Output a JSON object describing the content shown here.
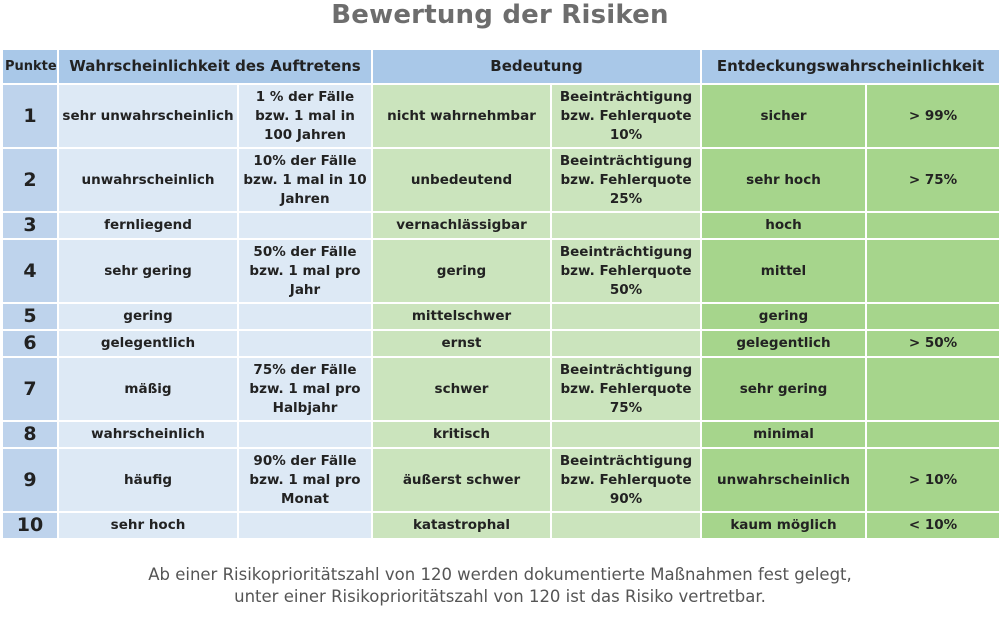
{
  "title": "Bewertung der Risiken",
  "headers": {
    "punkte": "Punkte",
    "wahrscheinlichkeit": "Wahrscheinlichkeit des Auftretens",
    "bedeutung": "Bedeutung",
    "entdeckung": "Entdeckungswahrscheinlichkeit"
  },
  "rows": [
    {
      "punkte": "1",
      "wahr": "sehr unwahrscheinlich",
      "wahr_detail": "1 % der Fälle bzw. 1 mal in 100 Jahren",
      "bed": "nicht wahrnehmbar",
      "bed_detail": "Beeinträchtigung bzw. Fehlerquote 10%",
      "ent": "sicher",
      "ent_detail": "> 99%"
    },
    {
      "punkte": "2",
      "wahr": "unwahrscheinlich",
      "wahr_detail": "10% der Fälle bzw. 1 mal in 10 Jahren",
      "bed": "unbedeutend",
      "bed_detail": "Beeinträchtigung bzw. Fehlerquote 25%",
      "ent": "sehr hoch",
      "ent_detail": "> 75%"
    },
    {
      "punkte": "3",
      "wahr": "fernliegend",
      "wahr_detail": "",
      "bed": "vernachlässigbar",
      "bed_detail": "",
      "ent": "hoch",
      "ent_detail": ""
    },
    {
      "punkte": "4",
      "wahr": "sehr gering",
      "wahr_detail": "50% der Fälle bzw. 1 mal pro Jahr",
      "bed": "gering",
      "bed_detail": "Beeinträchtigung bzw. Fehlerquote 50%",
      "ent": "mittel",
      "ent_detail": ""
    },
    {
      "punkte": "5",
      "wahr": "gering",
      "wahr_detail": "",
      "bed": "mittelschwer",
      "bed_detail": "",
      "ent": "gering",
      "ent_detail": ""
    },
    {
      "punkte": "6",
      "wahr": "gelegentlich",
      "wahr_detail": "",
      "bed": "ernst",
      "bed_detail": "",
      "ent": "gelegentlich",
      "ent_detail": "> 50%"
    },
    {
      "punkte": "7",
      "wahr": "mäßig",
      "wahr_detail": "75% der Fälle bzw. 1 mal pro Halbjahr",
      "bed": "schwer",
      "bed_detail": "Beeinträchtigung bzw. Fehlerquote 75%",
      "ent": "sehr gering",
      "ent_detail": ""
    },
    {
      "punkte": "8",
      "wahr": "wahrscheinlich",
      "wahr_detail": "",
      "bed": "kritisch",
      "bed_detail": "",
      "ent": "minimal",
      "ent_detail": ""
    },
    {
      "punkte": "9",
      "wahr": "häufig",
      "wahr_detail": "90% der Fälle bzw. 1 mal pro Monat",
      "bed": "äußerst schwer",
      "bed_detail": "Beeinträchtigung bzw. Fehlerquote 90%",
      "ent": "unwahrscheinlich",
      "ent_detail": "> 10%"
    },
    {
      "punkte": "10",
      "wahr": "sehr hoch",
      "wahr_detail": "",
      "bed": "katastrophal",
      "bed_detail": "",
      "ent": "kaum möglich",
      "ent_detail": "< 10%"
    }
  ],
  "footer": {
    "line1": "Ab einer Risikoprioritätszahl  von 120 werden dokumentierte Maßnahmen fest gelegt,",
    "line2": "unter einer Risikoprioritätszahl von 120 ist das Risiko vertretbar."
  },
  "colors": {
    "header_blue": "#a9c8e8",
    "number_blue": "#bed3ec",
    "light_blue": "#dde9f5",
    "light_green": "#cbe4bd",
    "dark_green": "#a6d58c",
    "title_gray": "#6d6d6d"
  }
}
